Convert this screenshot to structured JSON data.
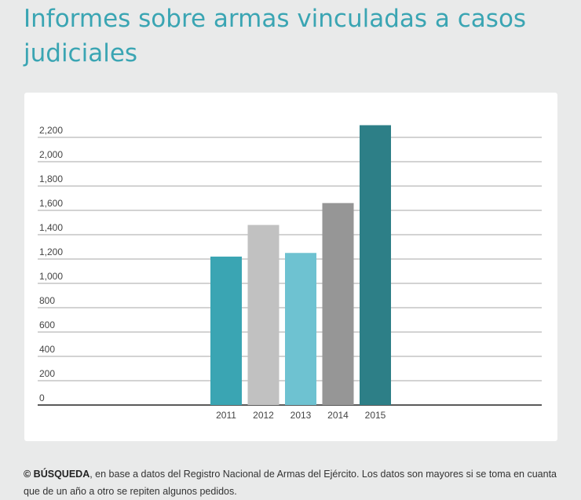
{
  "title": "Informes sobre armas vinculadas a casos judiciales",
  "chart_data": {
    "type": "bar",
    "title": "",
    "xlabel": "",
    "ylabel": "",
    "categories": [
      "2011",
      "2012",
      "2013",
      "2014",
      "2015"
    ],
    "values": [
      1220,
      1480,
      1250,
      1660,
      2300
    ],
    "colors": [
      "#3aa5b3",
      "#c1c1c1",
      "#6ec2d1",
      "#969696",
      "#2d7f87"
    ],
    "ylim": [
      0,
      2200
    ],
    "yticks": [
      0,
      200,
      400,
      600,
      800,
      1000,
      1200,
      1400,
      1600,
      1800,
      2000,
      2200
    ],
    "ytick_labels": [
      "0",
      "200",
      "400",
      "600",
      "800",
      "1,000",
      "1,200",
      "1,400",
      "1,600",
      "1,800",
      "2,000",
      "2,200"
    ],
    "grid": true
  },
  "footnote": {
    "source_label": "© BÚSQUEDA",
    "text": ", en base a datos del Registro Nacional de Armas del Ejército. Los datos son mayores si se toma en cuanta que de un año a otro se repiten algunos pedidos."
  }
}
